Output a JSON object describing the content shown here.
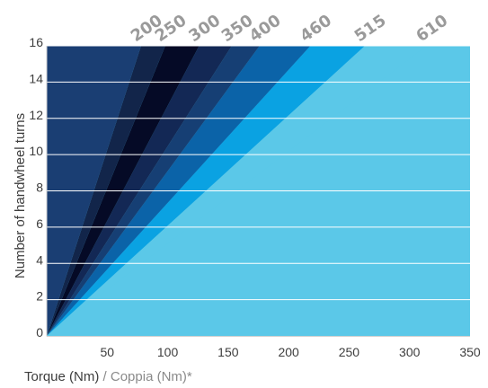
{
  "chart_data": {
    "type": "area",
    "xlabel_main": "Torque (Nm)",
    "xlabel_separator": " / ",
    "xlabel_alt": "Coppia (Nm)*",
    "ylabel": "Number of handwheel turns",
    "xlim": [
      0,
      350
    ],
    "ylim": [
      0,
      16
    ],
    "x_ticks": [
      "50",
      "100",
      "150",
      "200",
      "250",
      "300",
      "350"
    ],
    "y_ticks": [
      "0",
      "2",
      "4",
      "6",
      "8",
      "10",
      "12",
      "14",
      "16"
    ],
    "grid": "horizontal",
    "background_fill_color": "#5bc8e8",
    "series": [
      {
        "name": "200",
        "torque_at_16_turns": 78,
        "color": "#1a3e73"
      },
      {
        "name": "250",
        "torque_at_16_turns": 98,
        "color": "#12254a"
      },
      {
        "name": "300",
        "torque_at_16_turns": 126,
        "color": "#050a26"
      },
      {
        "name": "350",
        "torque_at_16_turns": 153,
        "color": "#132855"
      },
      {
        "name": "400",
        "torque_at_16_turns": 176,
        "color": "#163f74"
      },
      {
        "name": "460",
        "torque_at_16_turns": 218,
        "color": "#0b63a8"
      },
      {
        "name": "515",
        "torque_at_16_turns": 263,
        "color": "#0aa2e2"
      },
      {
        "name": "610",
        "torque_at_16_turns": 314,
        "color": "#5bc8e8"
      }
    ]
  }
}
